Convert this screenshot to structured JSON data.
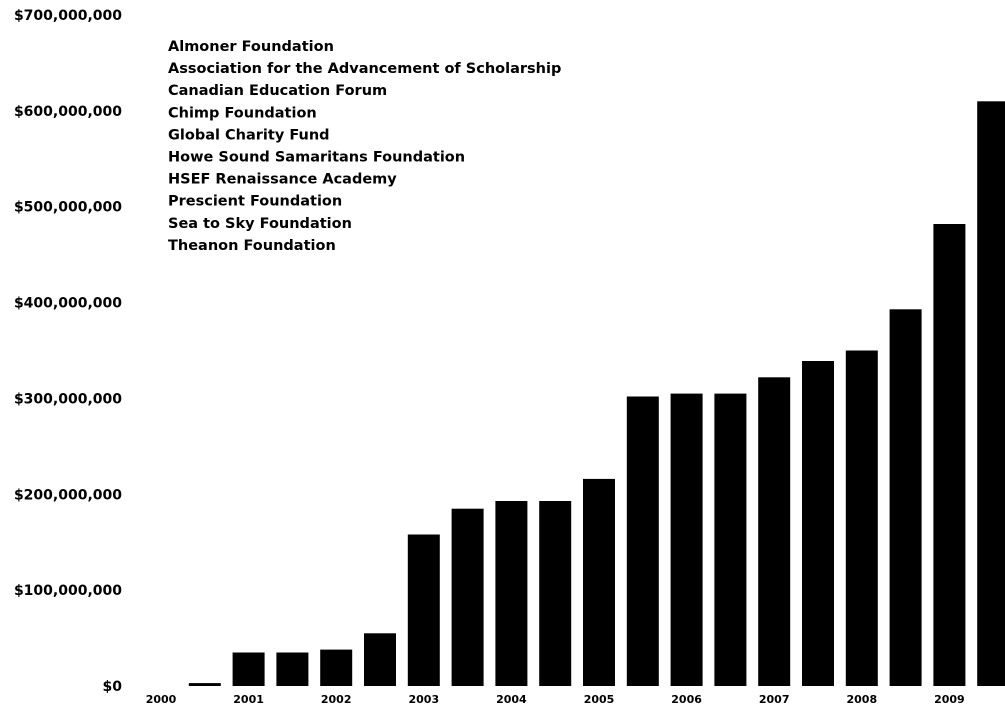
{
  "chart_data": {
    "type": "bar",
    "title": "",
    "xlabel": "",
    "ylabel": "",
    "ylim": [
      0,
      700000000
    ],
    "grid": false,
    "legend_placement": "top-left",
    "bar_color": "#000000",
    "y_ticks": [
      {
        "value": 700000000,
        "label": "$700,000,000"
      },
      {
        "value": 600000000,
        "label": "$600,000,000"
      },
      {
        "value": 500000000,
        "label": "$500,000,000"
      },
      {
        "value": 400000000,
        "label": "$400,000,000"
      },
      {
        "value": 300000000,
        "label": "$300,000,000"
      },
      {
        "value": 200000000,
        "label": "$200,000,000"
      },
      {
        "value": 100000000,
        "label": "$100,000,000"
      },
      {
        "value": 0,
        "label": "$0"
      }
    ],
    "x_tick_labels": [
      "2000",
      "2001",
      "2002",
      "2003",
      "2004",
      "2005",
      "2006",
      "2007",
      "2008",
      "2009"
    ],
    "bars_per_year": 2,
    "values": [
      0,
      3000000,
      35000000,
      35000000,
      38000000,
      55000000,
      158000000,
      185000000,
      193000000,
      193000000,
      216000000,
      302000000,
      305000000,
      305000000,
      322000000,
      339000000,
      350000000,
      393000000,
      482000000,
      610000000
    ],
    "legend_entries": [
      "Almoner Foundation",
      "Association for the Advancement of Scholarship",
      "Canadian Education Forum",
      "Chimp Foundation",
      "Global Charity Fund",
      "Howe Sound Samaritans Foundation",
      "HSEF Renaissance Academy",
      "Prescient Foundation",
      "Sea to Sky Foundation",
      "Theanon Foundation"
    ]
  }
}
